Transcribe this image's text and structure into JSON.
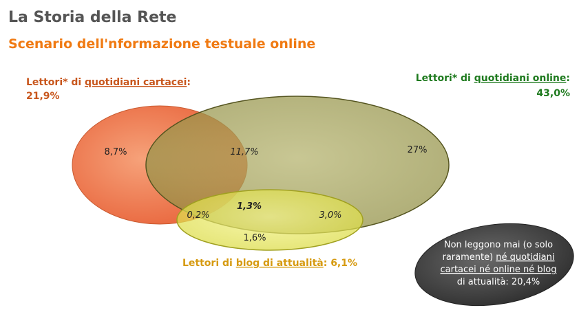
{
  "header": {
    "title": "La Storia della Rete",
    "subtitle": "Scenario dell'nformazione testuale online"
  },
  "sets": [
    {
      "label_parts": [
        "Lettori* di ",
        "quotidiani cartacei",
        ":"
      ],
      "value": "21,9%"
    },
    {
      "label_parts": [
        "Lettori* di ",
        "quotidiani online",
        ":"
      ],
      "value": "43,0%"
    },
    {
      "label_parts": [
        "Lettori di ",
        "blog di attualità",
        ": 6,1%"
      ]
    }
  ],
  "regions": {
    "only_print": "8,7%",
    "print_online": "11,7%",
    "only_online": "27%",
    "all_three": "1,3%",
    "print_blog": "0,2%",
    "online_blog": "3,0%",
    "only_blog": "1,6%"
  },
  "outside": {
    "lines": [
      [
        "Non leggono mai (o solo"
      ],
      [
        "raramente) ",
        "né quotidiani"
      ],
      [
        "cartacei né online né blog"
      ],
      [
        "di attualità: 20,4%"
      ]
    ]
  }
}
